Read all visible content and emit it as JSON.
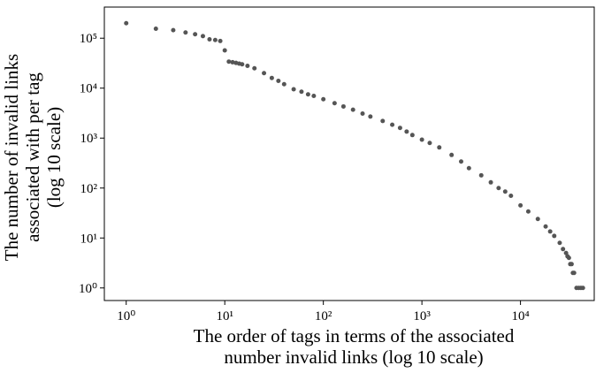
{
  "chart_data": {
    "type": "scatter",
    "xlabel": [
      "The order of tags in terms of the associated",
      "number invalid links (log 10 scale)"
    ],
    "ylabel": [
      "The number of invalid links",
      "associated with per tag",
      "(log 10 scale)"
    ],
    "x": [
      1,
      2,
      3,
      4,
      5,
      6,
      7,
      8,
      9,
      10,
      11,
      12,
      13,
      14,
      15,
      17,
      20,
      25,
      30,
      35,
      40,
      50,
      60,
      70,
      80,
      100,
      130,
      160,
      200,
      250,
      300,
      400,
      500,
      600,
      700,
      800,
      1000,
      1200,
      1500,
      2000,
      2500,
      3000,
      4000,
      5000,
      6000,
      7000,
      8000,
      10000,
      12000,
      15000,
      18000,
      20000,
      22000,
      25000,
      27000,
      29000,
      30000,
      31000,
      32000,
      33000,
      34000,
      35000,
      37000,
      39000,
      41000,
      43000
    ],
    "values": [
      200000,
      155000,
      145000,
      130000,
      120000,
      110000,
      95000,
      92000,
      88000,
      57000,
      34000,
      33000,
      32000,
      31000,
      30000,
      28000,
      25000,
      20000,
      16000,
      14000,
      12000,
      9500,
      8500,
      7500,
      7000,
      6000,
      5000,
      4300,
      3700,
      3100,
      2700,
      2200,
      1850,
      1600,
      1350,
      1150,
      930,
      800,
      650,
      460,
      340,
      250,
      180,
      130,
      100,
      85,
      70,
      45,
      34,
      24,
      17,
      13.5,
      11,
      8,
      6,
      5,
      4.3,
      4,
      3,
      3,
      2,
      2,
      1,
      1,
      1,
      1
    ],
    "color": "#555555",
    "xscale": "log",
    "yscale": "log",
    "xlim": [
      0.6,
      56000
    ],
    "ylim": [
      0.56,
      420000
    ],
    "xticks": [
      {
        "value": 1,
        "label": "10⁰"
      },
      {
        "value": 10,
        "label": "10¹"
      },
      {
        "value": 100,
        "label": "10²"
      },
      {
        "value": 1000,
        "label": "10³"
      },
      {
        "value": 10000,
        "label": "10⁴"
      }
    ],
    "yticks": [
      {
        "value": 1,
        "label": "10⁰"
      },
      {
        "value": 10,
        "label": "10¹"
      },
      {
        "value": 100,
        "label": "10²"
      },
      {
        "value": 1000,
        "label": "10³"
      },
      {
        "value": 10000,
        "label": "10⁴"
      },
      {
        "value": 100000,
        "label": "10⁵"
      }
    ]
  }
}
